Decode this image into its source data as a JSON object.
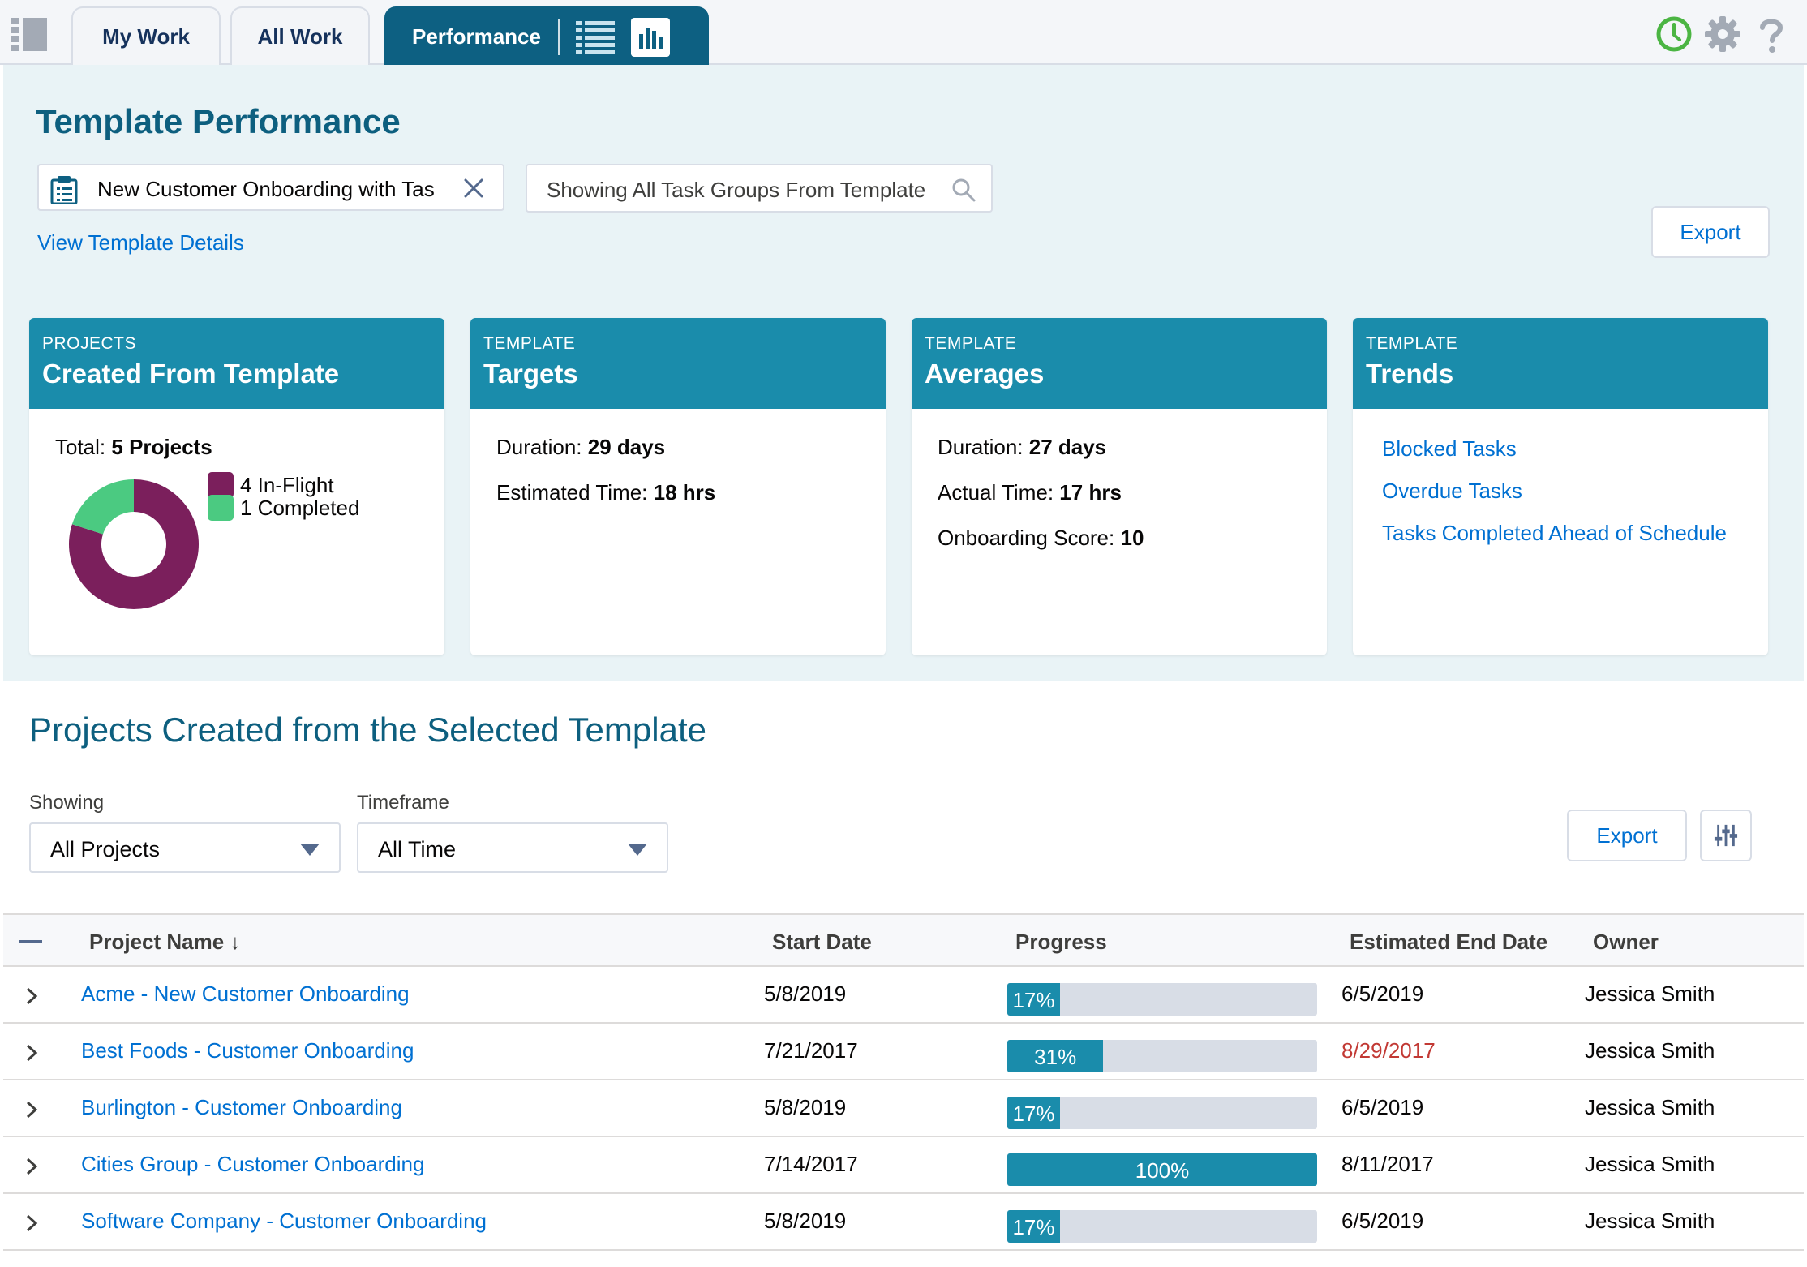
{
  "tabs": [
    {
      "label": "My Work"
    },
    {
      "label": "All Work"
    },
    {
      "label": "Performance"
    }
  ],
  "header": {
    "title": "Template Performance"
  },
  "template_picker": {
    "value": "New Customer Onboarding with Tas"
  },
  "group_search": {
    "placeholder": "Showing All Task Groups From Template"
  },
  "view_details": "View Template Details",
  "export_label": "Export",
  "cards": {
    "projects": {
      "sub": "PROJECTS",
      "title": "Created From Template",
      "total_label": "Total:",
      "total_value": "5 Projects",
      "legend": [
        {
          "label": "4 In-Flight",
          "value": 4,
          "color": "#7b1f5c"
        },
        {
          "label": "1 Completed",
          "value": 1,
          "color": "#4bca81"
        }
      ]
    },
    "targets": {
      "sub": "TEMPLATE",
      "title": "Targets",
      "duration_label": "Duration:",
      "duration_value": "29 days",
      "est_label": "Estimated Time:",
      "est_value": "18 hrs"
    },
    "averages": {
      "sub": "TEMPLATE",
      "title": "Averages",
      "duration_label": "Duration:",
      "duration_value": "27 days",
      "actual_label": "Actual Time:",
      "actual_value": "17 hrs",
      "score_label": "Onboarding Score:",
      "score_value": "10"
    },
    "trends": {
      "sub": "TEMPLATE",
      "title": "Trends",
      "links": [
        "Blocked Tasks",
        "Overdue Tasks",
        "Tasks Completed Ahead of Schedule"
      ]
    }
  },
  "projects_section": {
    "title": "Projects Created from the Selected Template",
    "showing_label": "Showing",
    "showing_value": "All Projects",
    "timeframe_label": "Timeframe",
    "timeframe_value": "All Time"
  },
  "table": {
    "headers": {
      "name": "Project Name ↓",
      "start": "Start Date",
      "progress": "Progress",
      "end": "Estimated End Date",
      "owner": "Owner"
    },
    "rows": [
      {
        "name": "Acme - New Customer Onboarding",
        "start": "5/8/2019",
        "progress": 17,
        "progress_label": "17%",
        "end": "6/5/2019",
        "late": false,
        "owner": "Jessica Smith"
      },
      {
        "name": "Best Foods - Customer Onboarding",
        "start": "7/21/2017",
        "progress": 31,
        "progress_label": "31%",
        "end": "8/29/2017",
        "late": true,
        "owner": "Jessica Smith"
      },
      {
        "name": "Burlington - Customer Onboarding",
        "start": "5/8/2019",
        "progress": 17,
        "progress_label": "17%",
        "end": "6/5/2019",
        "late": false,
        "owner": "Jessica Smith"
      },
      {
        "name": "Cities Group - Customer Onboarding",
        "start": "7/14/2017",
        "progress": 100,
        "progress_label": "100%",
        "end": "8/11/2017",
        "late": false,
        "owner": "Jessica Smith"
      },
      {
        "name": "Software Company - Customer Onboarding",
        "start": "5/8/2019",
        "progress": 17,
        "progress_label": "17%",
        "end": "6/5/2019",
        "late": false,
        "owner": "Jessica Smith"
      }
    ]
  },
  "colors": {
    "accent": "#1a8cab",
    "title": "#0d5f7f",
    "link": "#0070d2",
    "late": "#c23934"
  },
  "icons": [
    "app-menu-icon",
    "list-view-icon",
    "chart-view-icon",
    "clock-icon",
    "gear-icon",
    "help-icon",
    "clipboard-icon",
    "close-icon",
    "search-icon",
    "chevron-right-icon",
    "settings-sliders-icon",
    "caret-down-icon"
  ]
}
